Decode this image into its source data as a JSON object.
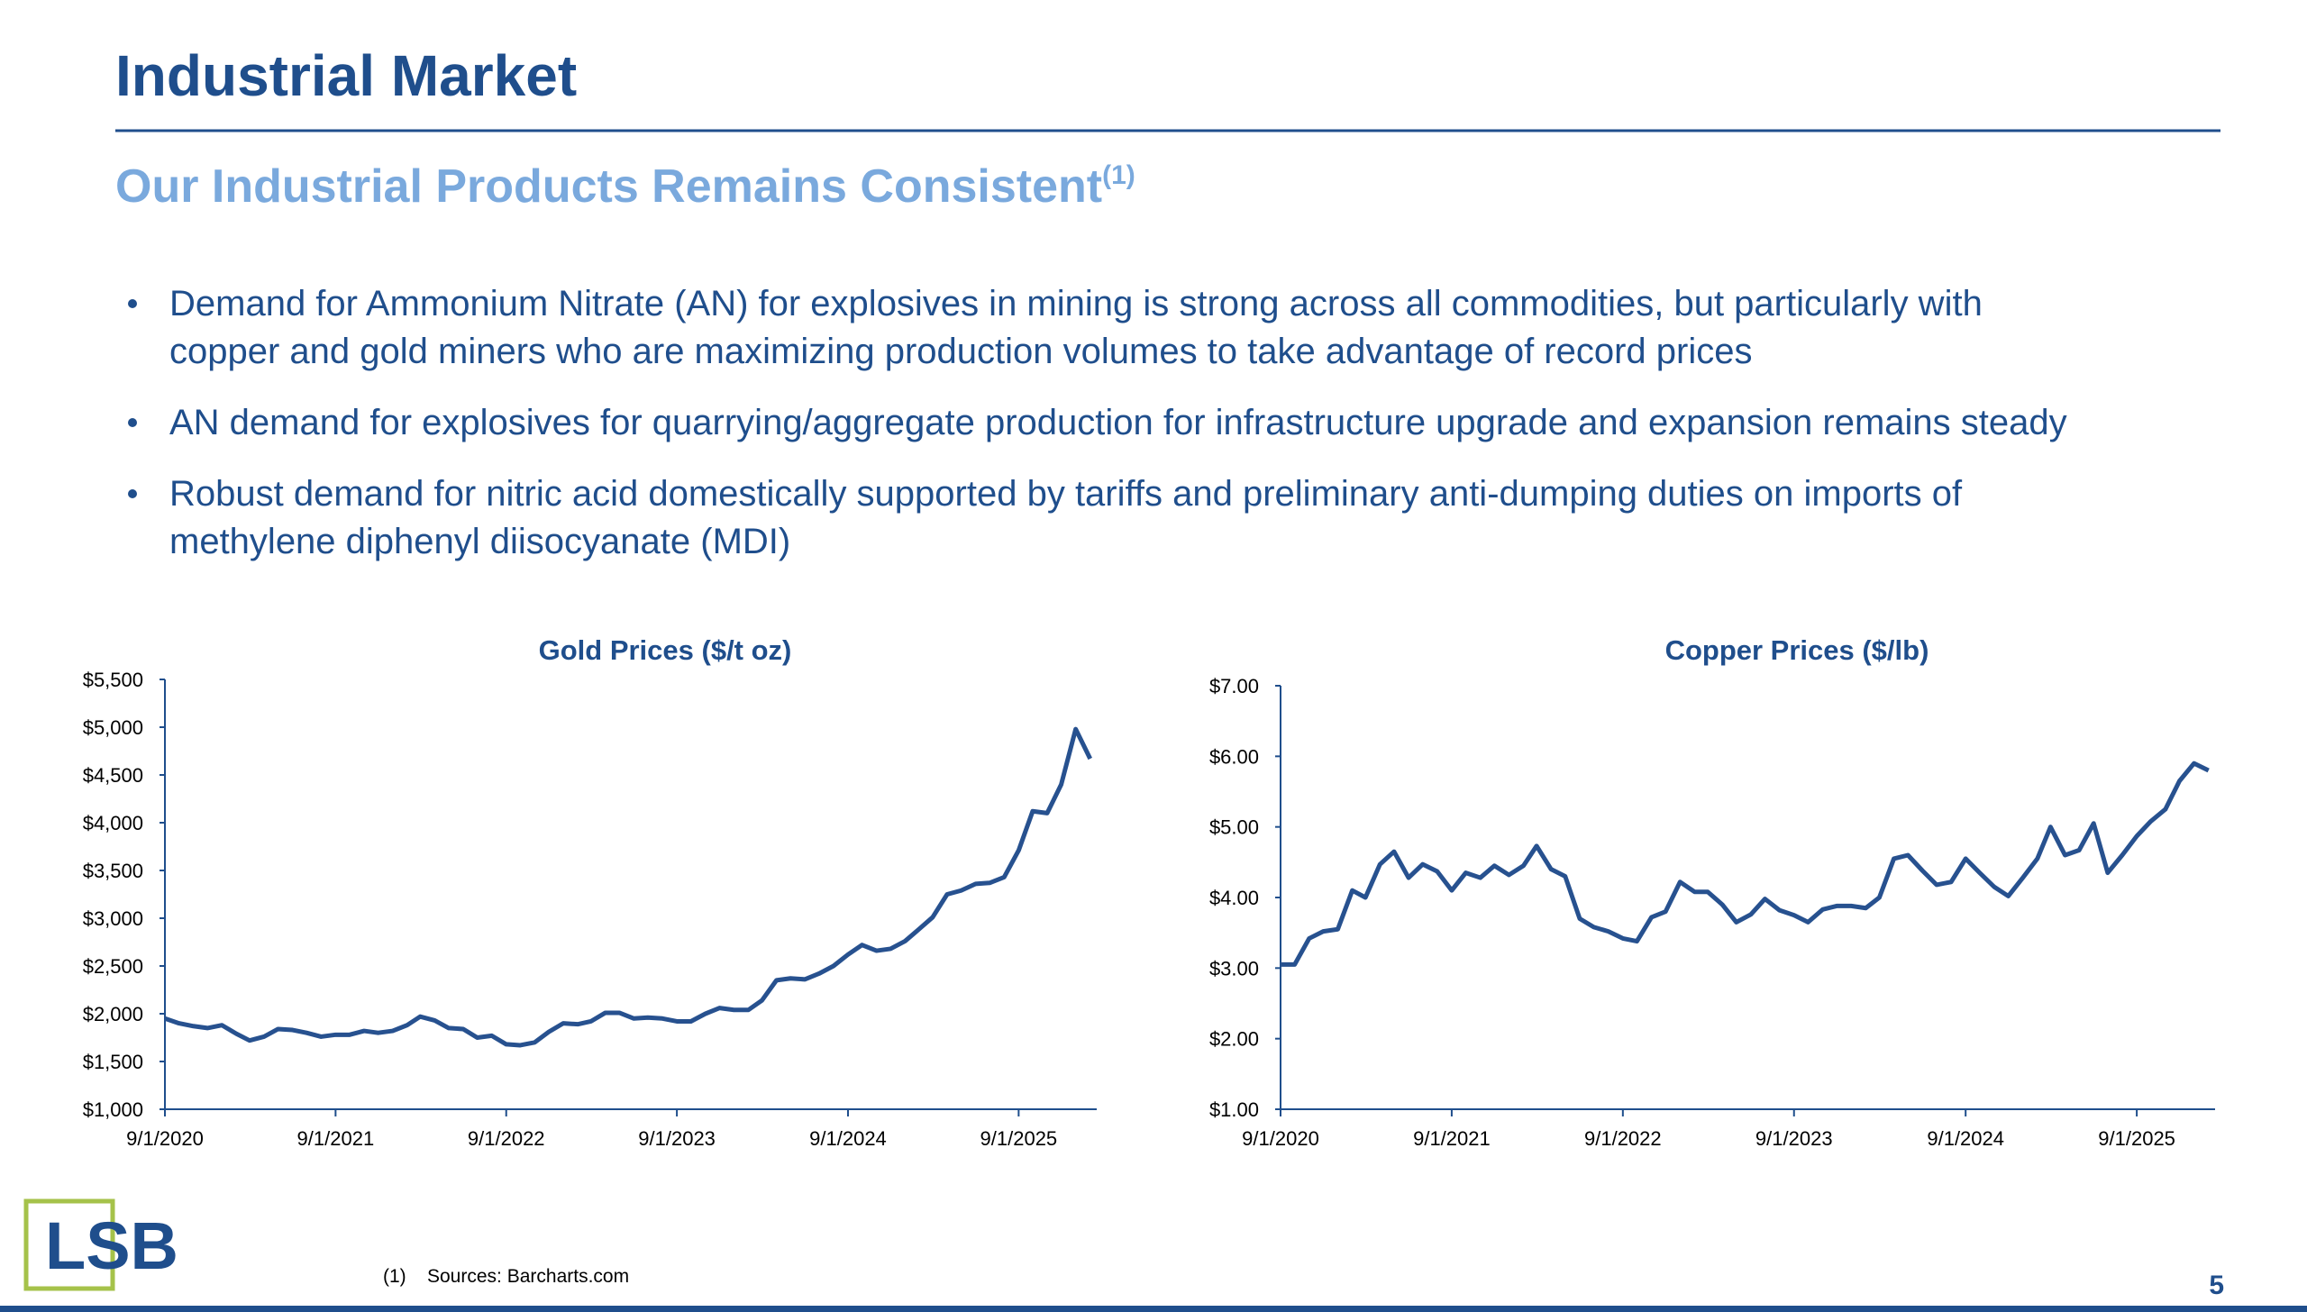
{
  "header": {
    "title": "Industrial Market",
    "subtitle": "Our Industrial Products Remains Consistent",
    "subtitle_note": "(1)"
  },
  "bullets": [
    [
      "Demand for Ammonium Nitrate (AN) for explosives in mining is strong across all commodities, but particularly with",
      "copper and gold miners who are maximizing production volumes to take advantage of record prices"
    ],
    [
      "AN demand for explosives for quarrying/aggregate production for infrastructure upgrade and expansion remains steady"
    ],
    [
      "Robust demand for nitric acid domestically supported by tariffs and preliminary anti-dumping duties on imports of",
      "methylene diphenyl diisocyanate (MDI)"
    ]
  ],
  "chart_data": [
    {
      "type": "line",
      "title": "Gold Prices ($/t oz)",
      "color": "#27518f",
      "x": [
        "2020-09-01",
        "2020-10-01",
        "2020-11-01",
        "2020-12-01",
        "2021-01-01",
        "2021-02-01",
        "2021-03-01",
        "2021-04-01",
        "2021-05-01",
        "2021-06-01",
        "2021-07-01",
        "2021-08-01",
        "2021-09-01",
        "2021-10-01",
        "2021-11-01",
        "2021-12-01",
        "2022-01-01",
        "2022-02-01",
        "2022-03-01",
        "2022-04-01",
        "2022-05-01",
        "2022-06-01",
        "2022-07-01",
        "2022-08-01",
        "2022-09-01",
        "2022-10-01",
        "2022-11-01",
        "2022-12-01",
        "2023-01-01",
        "2023-02-01",
        "2023-03-01",
        "2023-04-01",
        "2023-05-01",
        "2023-06-01",
        "2023-07-01",
        "2023-08-01",
        "2023-09-01",
        "2023-10-01",
        "2023-11-01",
        "2023-12-01",
        "2024-01-01",
        "2024-02-01",
        "2024-03-01",
        "2024-04-01",
        "2024-05-01",
        "2024-06-01",
        "2024-07-01",
        "2024-08-01",
        "2024-09-01",
        "2024-10-01",
        "2024-11-01",
        "2024-12-01",
        "2025-01-01",
        "2025-02-01",
        "2025-03-01",
        "2025-04-01",
        "2025-05-01",
        "2025-06-01",
        "2025-07-01",
        "2025-08-01",
        "2025-09-01",
        "2025-10-01",
        "2025-11-01",
        "2025-12-01",
        "2026-01-01",
        "2026-02-01"
      ],
      "values": [
        1950,
        1900,
        1870,
        1850,
        1880,
        1790,
        1720,
        1760,
        1840,
        1830,
        1800,
        1760,
        1780,
        1780,
        1820,
        1800,
        1820,
        1880,
        1970,
        1930,
        1850,
        1840,
        1750,
        1770,
        1680,
        1670,
        1700,
        1810,
        1900,
        1890,
        1920,
        2010,
        2010,
        1950,
        1960,
        1950,
        1920,
        1920,
        2000,
        2060,
        2040,
        2040,
        2140,
        2350,
        2370,
        2360,
        2420,
        2500,
        2620,
        2720,
        2660,
        2680,
        2760,
        2890,
        3010,
        3250,
        3290,
        3360,
        3370,
        3430,
        3710,
        4120,
        4100,
        4400,
        4980,
        4670
      ],
      "xlim": [
        "2020-09-01",
        "2026-02-15"
      ],
      "xticks": [
        {
          "value": "2020-09-01",
          "label": "9/1/2020"
        },
        {
          "value": "2021-09-01",
          "label": "9/1/2021"
        },
        {
          "value": "2022-09-01",
          "label": "9/1/2022"
        },
        {
          "value": "2023-09-01",
          "label": "9/1/2023"
        },
        {
          "value": "2024-09-01",
          "label": "9/1/2024"
        },
        {
          "value": "2025-09-01",
          "label": "9/1/2025"
        }
      ],
      "ylim": [
        1000,
        5500
      ],
      "yticks": [
        {
          "value": 1000,
          "label": "$1,000"
        },
        {
          "value": 1500,
          "label": "$1,500"
        },
        {
          "value": 2000,
          "label": "$2,000"
        },
        {
          "value": 2500,
          "label": "$2,500"
        },
        {
          "value": 3000,
          "label": "$3,000"
        },
        {
          "value": 3500,
          "label": "$3,500"
        },
        {
          "value": 4000,
          "label": "$4,000"
        },
        {
          "value": 4500,
          "label": "$4,500"
        },
        {
          "value": 5000,
          "label": "$5,000"
        },
        {
          "value": 5500,
          "label": "$5,500"
        }
      ]
    },
    {
      "type": "line",
      "title": "Copper Prices ($/lb)",
      "color": "#27518f",
      "x": [
        "2020-09-01",
        "2020-10-01",
        "2020-11-01",
        "2020-12-01",
        "2021-01-01",
        "2021-02-01",
        "2021-03-01",
        "2021-04-01",
        "2021-05-01",
        "2021-06-01",
        "2021-07-01",
        "2021-08-01",
        "2021-09-01",
        "2021-10-01",
        "2021-11-01",
        "2021-12-01",
        "2022-01-01",
        "2022-02-01",
        "2022-03-01",
        "2022-04-01",
        "2022-05-01",
        "2022-06-01",
        "2022-07-01",
        "2022-08-01",
        "2022-09-01",
        "2022-10-01",
        "2022-11-01",
        "2022-12-01",
        "2023-01-01",
        "2023-02-01",
        "2023-03-01",
        "2023-04-01",
        "2023-05-01",
        "2023-06-01",
        "2023-07-01",
        "2023-08-01",
        "2023-09-01",
        "2023-10-01",
        "2023-11-01",
        "2023-12-01",
        "2024-01-01",
        "2024-02-01",
        "2024-03-01",
        "2024-04-01",
        "2024-05-01",
        "2024-06-01",
        "2024-07-01",
        "2024-08-01",
        "2024-09-01",
        "2024-10-01",
        "2024-11-01",
        "2024-12-01",
        "2025-01-01",
        "2025-02-01",
        "2025-03-01",
        "2025-04-01",
        "2025-05-01",
        "2025-06-01",
        "2025-07-01",
        "2025-08-01",
        "2025-09-01",
        "2025-10-01",
        "2025-11-01",
        "2025-12-01",
        "2026-01-01",
        "2026-02-01"
      ],
      "values": [
        3.05,
        3.05,
        3.42,
        3.52,
        3.55,
        4.1,
        4.0,
        4.47,
        4.65,
        4.28,
        4.47,
        4.37,
        4.1,
        4.35,
        4.28,
        4.45,
        4.32,
        4.45,
        4.73,
        4.4,
        4.3,
        3.7,
        3.58,
        3.52,
        3.42,
        3.38,
        3.72,
        3.8,
        4.22,
        4.08,
        4.08,
        3.9,
        3.65,
        3.76,
        3.98,
        3.82,
        3.75,
        3.65,
        3.83,
        3.88,
        3.88,
        3.85,
        4.0,
        4.55,
        4.6,
        4.38,
        4.18,
        4.22,
        4.55,
        4.35,
        4.15,
        4.02,
        4.28,
        4.55,
        5.0,
        4.6,
        4.67,
        5.05,
        4.35,
        4.6,
        4.87,
        5.08,
        5.25,
        5.65,
        5.9,
        5.8
      ],
      "xlim": [
        "2020-09-01",
        "2026-02-15"
      ],
      "xticks": [
        {
          "value": "2020-09-01",
          "label": "9/1/2020"
        },
        {
          "value": "2021-09-01",
          "label": "9/1/2021"
        },
        {
          "value": "2022-09-01",
          "label": "9/1/2022"
        },
        {
          "value": "2023-09-01",
          "label": "9/1/2023"
        },
        {
          "value": "2024-09-01",
          "label": "9/1/2024"
        },
        {
          "value": "2025-09-01",
          "label": "9/1/2025"
        }
      ],
      "ylim": [
        1,
        7
      ],
      "yticks": [
        {
          "value": 1,
          "label": "$1.00"
        },
        {
          "value": 2,
          "label": "$2.00"
        },
        {
          "value": 3,
          "label": "$3.00"
        },
        {
          "value": 4,
          "label": "$4.00"
        },
        {
          "value": 5,
          "label": "$5.00"
        },
        {
          "value": 6,
          "label": "$6.00"
        },
        {
          "value": 7,
          "label": "$7.00"
        }
      ]
    }
  ],
  "footnote": {
    "marker": "(1)",
    "text": "Sources: Barcharts.com"
  },
  "logo": "LSB",
  "page_number": "5"
}
